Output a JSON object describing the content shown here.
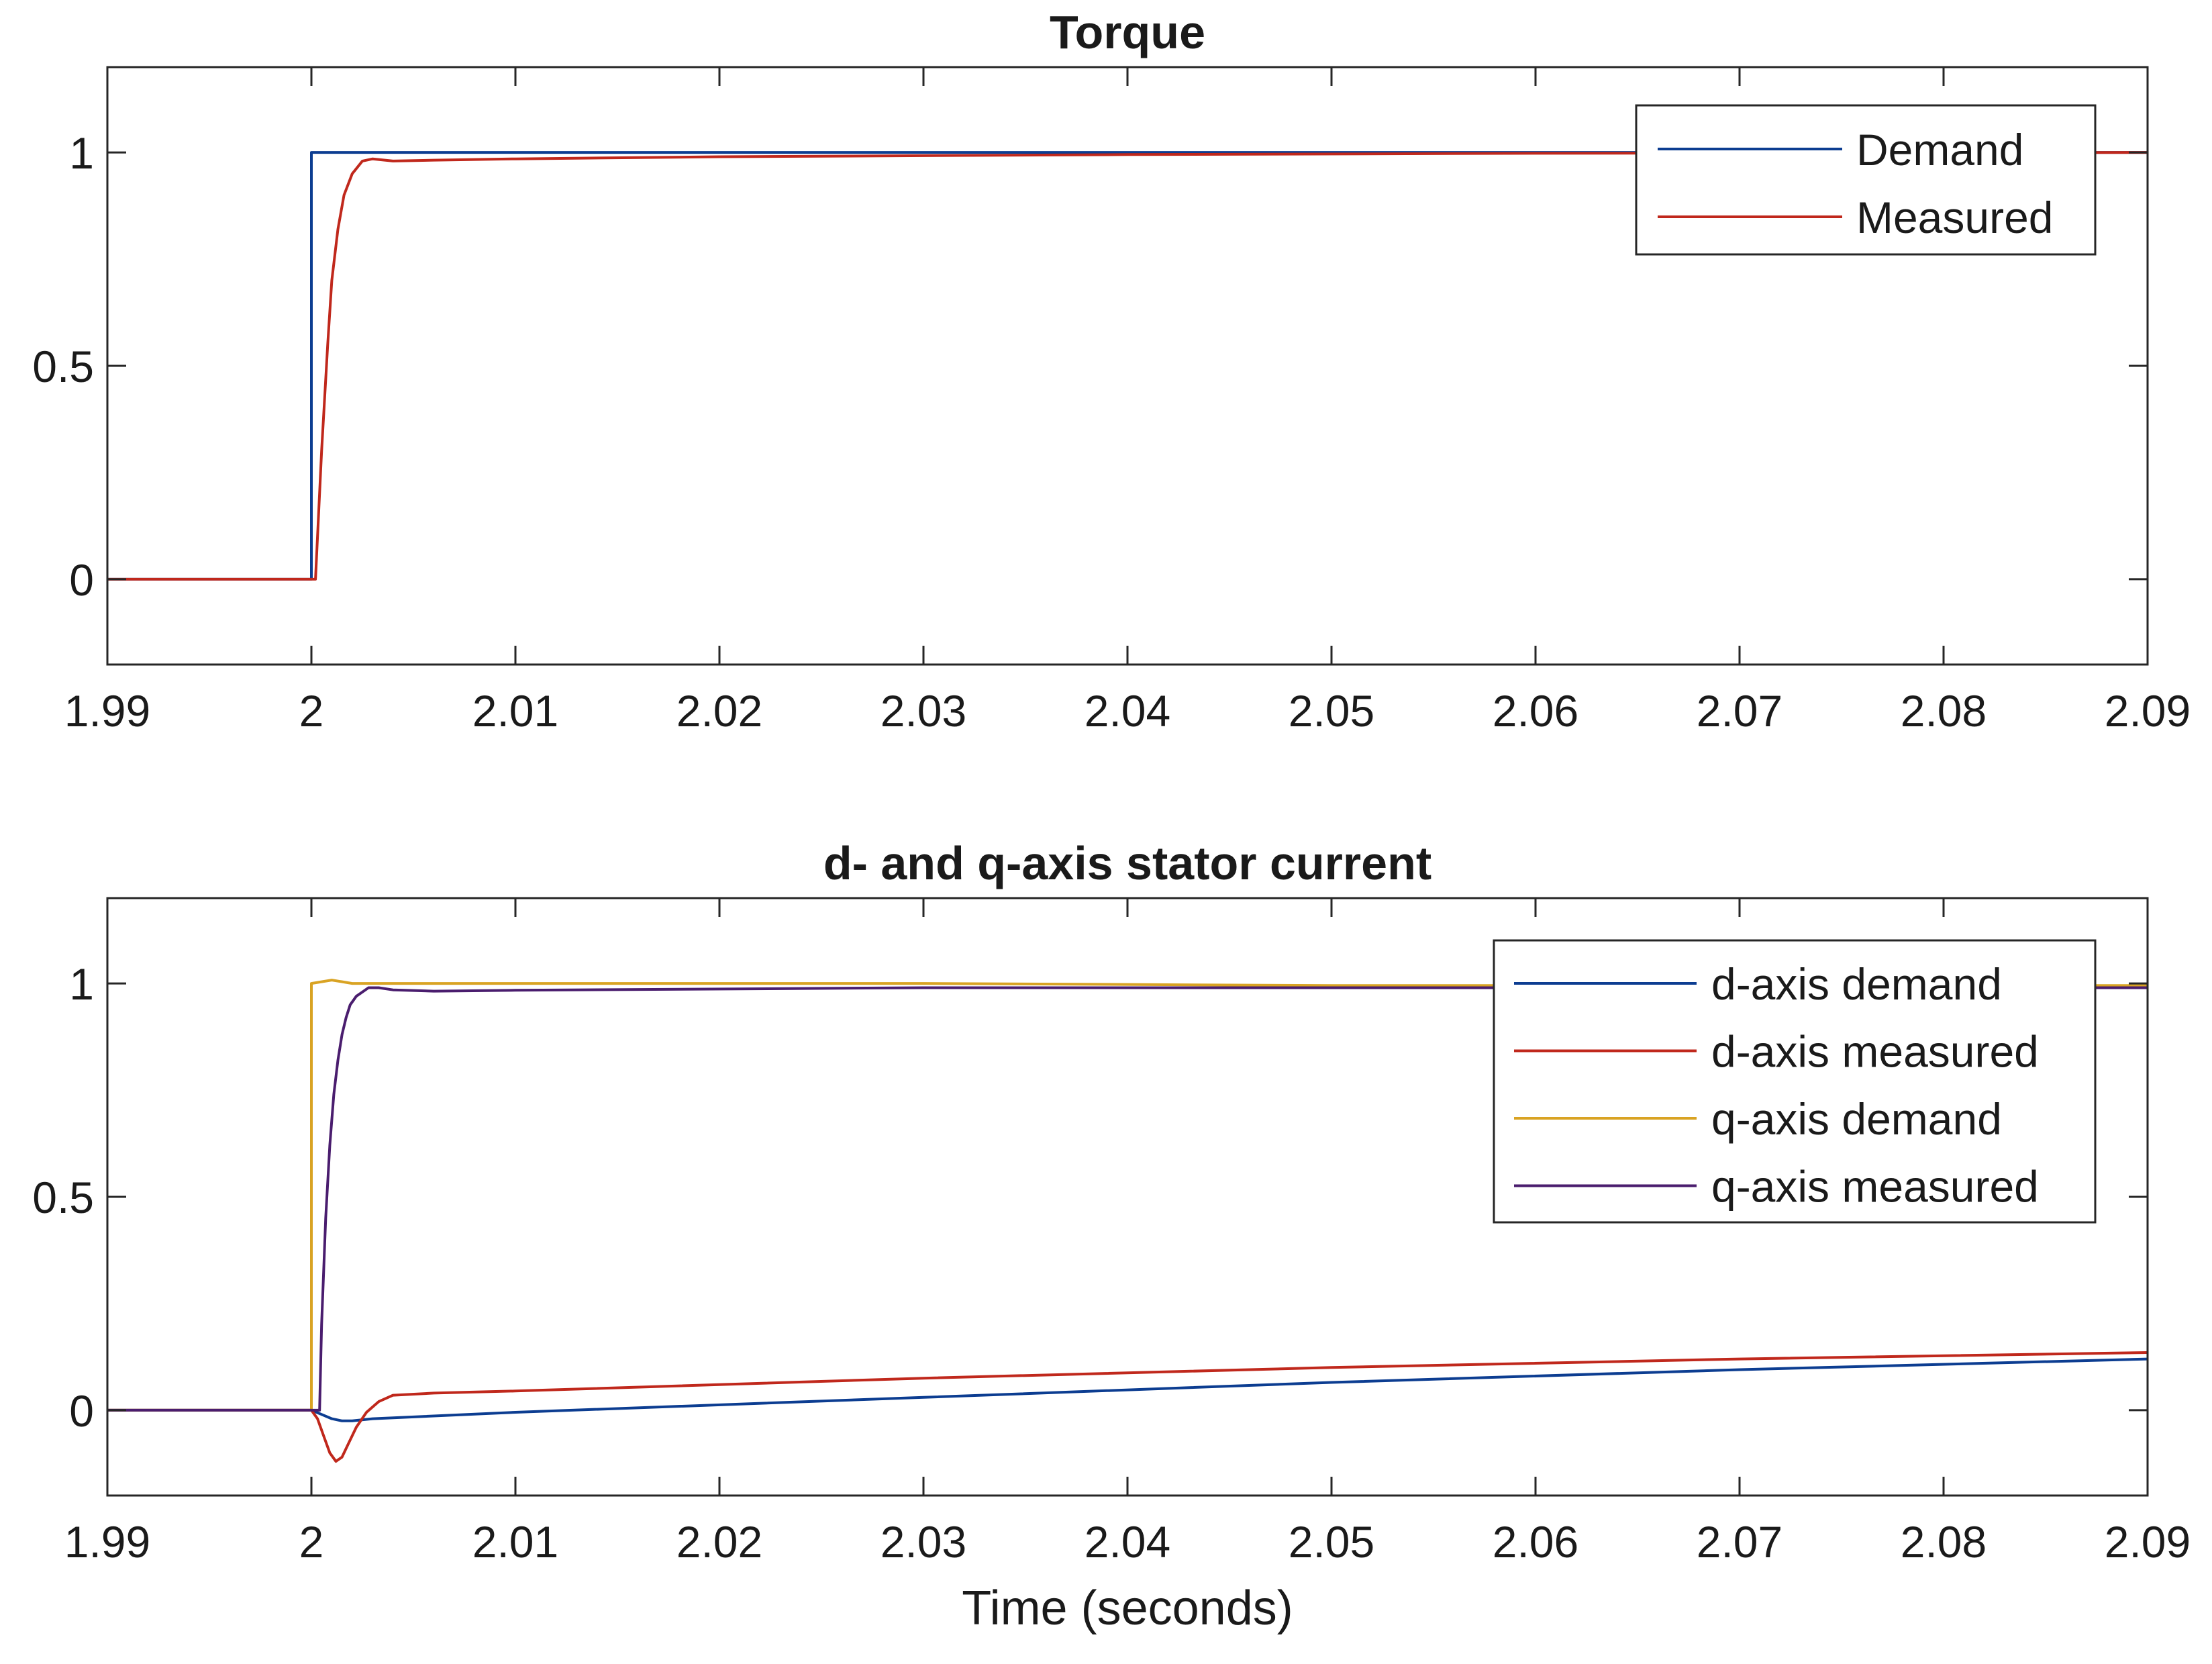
{
  "chart_data": [
    {
      "type": "line",
      "title": "Torque",
      "xlabel": "",
      "ylabel": "",
      "xlim": [
        1.99,
        2.09
      ],
      "ylim": [
        -0.2,
        1.2
      ],
      "xticks": [
        "1.99",
        "2",
        "2.01",
        "2.02",
        "2.03",
        "2.04",
        "2.05",
        "2.06",
        "2.07",
        "2.08",
        "2.09"
      ],
      "yticks": [
        "0",
        "0.5",
        "1"
      ],
      "legend_position": "top-right",
      "grid": false,
      "series": [
        {
          "name": "Demand",
          "color": "#0c3d91",
          "x": [
            1.99,
            2.0,
            2.0,
            2.09
          ],
          "y": [
            0,
            0,
            1,
            1
          ]
        },
        {
          "name": "Measured",
          "color": "#c0281c",
          "x": [
            1.99,
            2.0,
            2.0002,
            2.0005,
            2.0008,
            2.001,
            2.0013,
            2.0016,
            2.002,
            2.0025,
            2.003,
            2.004,
            2.006,
            2.01,
            2.02,
            2.04,
            2.06,
            2.09
          ],
          "y": [
            0,
            0,
            0.0,
            0.3,
            0.55,
            0.7,
            0.82,
            0.9,
            0.95,
            0.98,
            0.985,
            0.98,
            0.982,
            0.985,
            0.99,
            0.995,
            0.998,
            1.0
          ]
        }
      ]
    },
    {
      "type": "line",
      "title": "d- and q-axis stator current",
      "xlabel": "Time (seconds)",
      "ylabel": "",
      "xlim": [
        1.99,
        2.09
      ],
      "ylim": [
        -0.2,
        1.2
      ],
      "xticks": [
        "1.99",
        "2",
        "2.01",
        "2.02",
        "2.03",
        "2.04",
        "2.05",
        "2.06",
        "2.07",
        "2.08",
        "2.09"
      ],
      "yticks": [
        "0",
        "0.5",
        "1"
      ],
      "legend_position": "top-right",
      "grid": false,
      "series": [
        {
          "name": "d-axis demand",
          "color": "#0c3d91",
          "x": [
            1.99,
            2.0,
            2.0005,
            2.001,
            2.0015,
            2.002,
            2.003,
            2.01,
            2.03,
            2.05,
            2.07,
            2.09
          ],
          "y": [
            0,
            0,
            -0.01,
            -0.02,
            -0.025,
            -0.025,
            -0.02,
            -0.005,
            0.03,
            0.065,
            0.095,
            0.12
          ]
        },
        {
          "name": "d-axis measured",
          "color": "#c0281c",
          "x": [
            1.99,
            2.0,
            2.0003,
            2.0006,
            2.0009,
            2.0012,
            2.0015,
            2.0018,
            2.0022,
            2.0027,
            2.0033,
            2.004,
            2.006,
            2.01,
            2.03,
            2.05,
            2.07,
            2.09
          ],
          "y": [
            0,
            0,
            -0.02,
            -0.06,
            -0.1,
            -0.12,
            -0.11,
            -0.08,
            -0.04,
            -0.005,
            0.02,
            0.035,
            0.04,
            0.045,
            0.075,
            0.1,
            0.12,
            0.135
          ]
        },
        {
          "name": "q-axis demand",
          "color": "#d9a323",
          "x": [
            1.99,
            2.0,
            2.0,
            2.001,
            2.002,
            2.003,
            2.01,
            2.03,
            2.05,
            2.09
          ],
          "y": [
            0,
            0,
            1.0,
            1.008,
            1.0,
            1.0,
            1.0,
            1.0,
            0.995,
            0.995
          ]
        },
        {
          "name": "q-axis measured",
          "color": "#4a1d6e",
          "x": [
            1.99,
            2.0004,
            2.0005,
            2.0007,
            2.0009,
            2.0011,
            2.0013,
            2.0015,
            2.0017,
            2.0019,
            2.0022,
            2.0025,
            2.0028,
            2.0033,
            2.004,
            2.006,
            2.01,
            2.03,
            2.05,
            2.07,
            2.09
          ],
          "y": [
            0,
            0,
            0.2,
            0.45,
            0.62,
            0.74,
            0.82,
            0.88,
            0.92,
            0.95,
            0.97,
            0.98,
            0.99,
            0.99,
            0.985,
            0.982,
            0.984,
            0.99,
            0.99,
            0.99,
            0.99
          ]
        }
      ]
    }
  ]
}
